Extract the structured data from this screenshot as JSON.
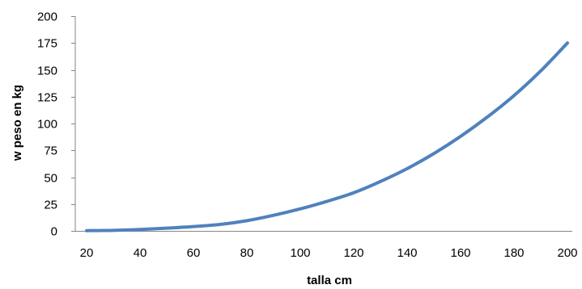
{
  "chart_data": {
    "type": "line",
    "title": "",
    "xlabel": "talla cm",
    "ylabel": "w peso en kg",
    "x": [
      20,
      30,
      40,
      50,
      60,
      70,
      80,
      90,
      100,
      110,
      120,
      130,
      140,
      150,
      160,
      170,
      180,
      190,
      200
    ],
    "series": [
      {
        "values": [
          0.2,
          0.5,
          1.3,
          2.5,
          4,
          6,
          9.5,
          14.5,
          20.5,
          27.5,
          35.5,
          46,
          58,
          72,
          88,
          106,
          126,
          149,
          175
        ],
        "color": "#4F81BD"
      }
    ],
    "xlim": [
      20,
      200
    ],
    "ylim": [
      0,
      200
    ],
    "x_ticks": [
      20,
      40,
      60,
      80,
      100,
      120,
      140,
      160,
      180,
      200
    ],
    "y_ticks": [
      0,
      25,
      50,
      75,
      100,
      125,
      150,
      175,
      200
    ],
    "grid": false,
    "legend": "none",
    "axis_color": "#868686"
  }
}
